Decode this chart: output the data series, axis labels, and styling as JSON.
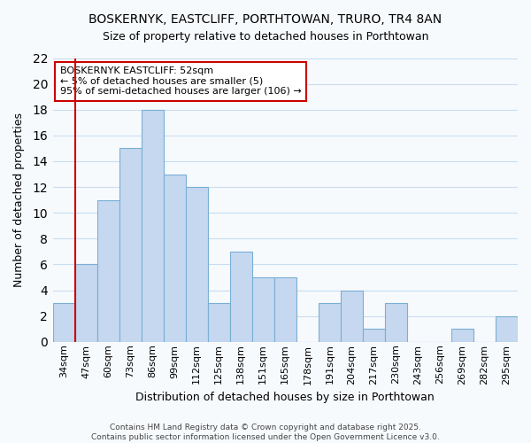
{
  "title": "BOSKERNYK, EASTCLIFF, PORTHTOWAN, TRURO, TR4 8AN",
  "subtitle": "Size of property relative to detached houses in Porthtowan",
  "xlabel": "Distribution of detached houses by size in Porthtowan",
  "ylabel": "Number of detached properties",
  "categories": [
    "34sqm",
    "47sqm",
    "60sqm",
    "73sqm",
    "86sqm",
    "99sqm",
    "112sqm",
    "125sqm",
    "138sqm",
    "151sqm",
    "165sqm",
    "178sqm",
    "191sqm",
    "204sqm",
    "217sqm",
    "230sqm",
    "243sqm",
    "256sqm",
    "269sqm",
    "282sqm",
    "295sqm"
  ],
  "values": [
    3,
    6,
    11,
    15,
    18,
    13,
    12,
    3,
    7,
    5,
    5,
    0,
    3,
    4,
    1,
    3,
    0,
    0,
    1,
    0,
    2
  ],
  "bar_color": "#c5d8f0",
  "bar_edge_color": "#7aafd4",
  "vline_x_index": 1,
  "vline_color": "#cc0000",
  "annotation_title": "BOSKERNYK EASTCLIFF: 52sqm",
  "annotation_line1": "← 5% of detached houses are smaller (5)",
  "annotation_line2": "95% of semi-detached houses are larger (106) →",
  "annotation_box_color": "#ffffff",
  "annotation_box_edge": "#cc0000",
  "ylim": [
    0,
    22
  ],
  "yticks": [
    0,
    2,
    4,
    6,
    8,
    10,
    12,
    14,
    16,
    18,
    20,
    22
  ],
  "footer_line1": "Contains HM Land Registry data © Crown copyright and database right 2025.",
  "footer_line2": "Contains public sector information licensed under the Open Government Licence v3.0.",
  "bg_color": "#f7fafd",
  "grid_color": "#c8ddf0",
  "title_fontsize": 10,
  "subtitle_fontsize": 9,
  "ylabel_fontsize": 9,
  "xlabel_fontsize": 9,
  "tick_fontsize": 8,
  "annotation_fontsize": 8,
  "footer_fontsize": 6.5
}
